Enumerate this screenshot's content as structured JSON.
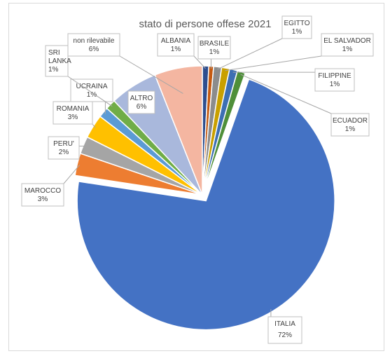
{
  "chart_data": {
    "type": "pie",
    "title": "stato di persone offese 2021",
    "slices": [
      {
        "name": "ALBANIA",
        "label": "1%",
        "value": 0.8,
        "color": "#2e4e8f"
      },
      {
        "name": "BRASILE",
        "label": "1%",
        "value": 0.6,
        "color": "#c55a11"
      },
      {
        "name": "EGITTO",
        "label": "1%",
        "value": 1.0,
        "color": "#8c8c8c"
      },
      {
        "name": "EL SALVADOR",
        "label": "1%",
        "value": 1.0,
        "color": "#c9a000"
      },
      {
        "name": "FILIPPINE",
        "label": "1%",
        "value": 1.0,
        "color": "#3d6fb3"
      },
      {
        "name": "ECUADOR",
        "label": "1%",
        "value": 1.0,
        "color": "#4f8f3a"
      },
      {
        "name": "ITALIA",
        "label": "72%",
        "value": 72.0,
        "color": "#4472c4"
      },
      {
        "name": "MAROCCO",
        "label": "3%",
        "value": 2.8,
        "color": "#ed7d31"
      },
      {
        "name": "PERU'",
        "label": "2%",
        "value": 2.2,
        "color": "#a5a5a5"
      },
      {
        "name": "ROMANIA",
        "label": "3%",
        "value": 3.0,
        "color": "#ffc000"
      },
      {
        "name": "UCRAINA",
        "label": "1%",
        "value": 1.3,
        "color": "#5b9bd5"
      },
      {
        "name": "SRI LANKA",
        "label": "1%",
        "value": 1.3,
        "color": "#70ad47"
      },
      {
        "name": "ALTRO",
        "label": "6%",
        "value": 6.0,
        "color": "#a9b8dc"
      },
      {
        "name": "non rilevabile",
        "label": "6%",
        "value": 6.0,
        "color": "#f4b6a1"
      }
    ]
  }
}
